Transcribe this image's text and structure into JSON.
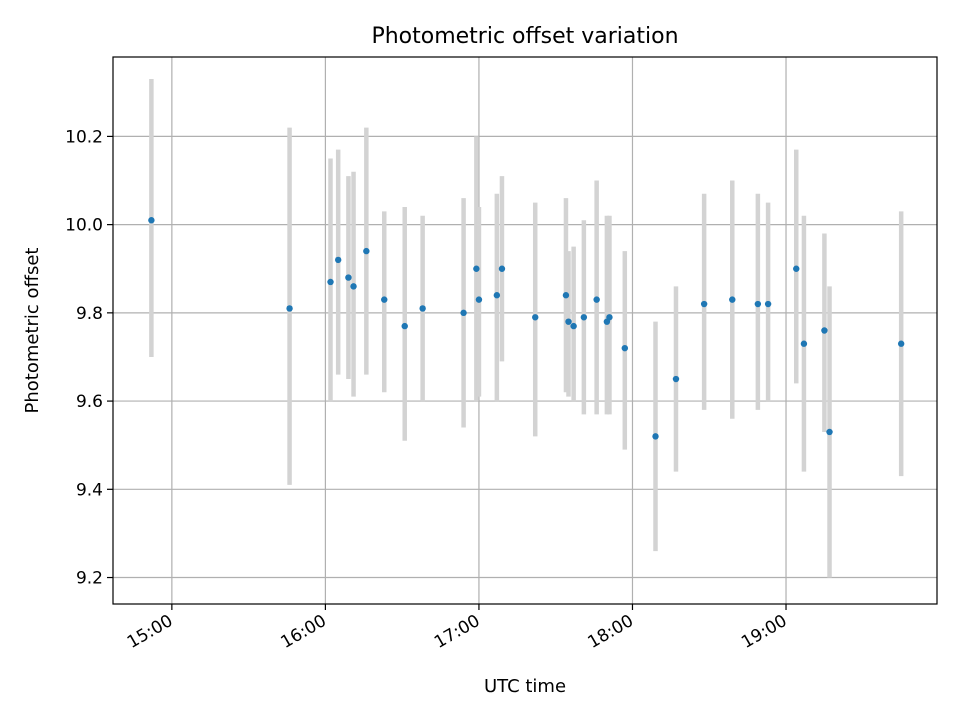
{
  "chart_data": {
    "type": "scatter",
    "title": "Photometric offset variation",
    "xlabel": "UTC time",
    "ylabel": "Photometric offset",
    "x_axis": {
      "ticks": [
        "15:00",
        "16:00",
        "17:00",
        "18:00",
        "19:00"
      ],
      "range": [
        "14:37",
        "19:59"
      ]
    },
    "y_axis": {
      "ticks": [
        "9.2",
        "9.4",
        "9.6",
        "9.8",
        "10.0",
        "10.2"
      ],
      "range": [
        9.14,
        10.38
      ]
    },
    "grid": true,
    "colors": {
      "point": "#1f77b4",
      "errorbar": "#d3d3d3",
      "grid": "#b0b0b0",
      "axis": "#000000"
    },
    "series": [
      {
        "points": [
          {
            "x": "14:52",
            "y": 10.01,
            "ylow": 9.7,
            "yhigh": 10.33
          },
          {
            "x": "15:46",
            "y": 9.81,
            "ylow": 9.41,
            "yhigh": 10.22
          },
          {
            "x": "16:02",
            "y": 9.87,
            "ylow": 9.6,
            "yhigh": 10.15
          },
          {
            "x": "16:05",
            "y": 9.92,
            "ylow": 9.66,
            "yhigh": 10.17
          },
          {
            "x": "16:09",
            "y": 9.88,
            "ylow": 9.65,
            "yhigh": 10.11
          },
          {
            "x": "16:11",
            "y": 9.86,
            "ylow": 9.61,
            "yhigh": 10.12
          },
          {
            "x": "16:16",
            "y": 9.94,
            "ylow": 9.66,
            "yhigh": 10.22
          },
          {
            "x": "16:23",
            "y": 9.83,
            "ylow": 9.62,
            "yhigh": 10.03
          },
          {
            "x": "16:31",
            "y": 9.77,
            "ylow": 9.51,
            "yhigh": 10.04
          },
          {
            "x": "16:38",
            "y": 9.81,
            "ylow": 9.6,
            "yhigh": 10.02
          },
          {
            "x": "16:54",
            "y": 9.8,
            "ylow": 9.54,
            "yhigh": 10.06
          },
          {
            "x": "16:59",
            "y": 9.9,
            "ylow": 9.6,
            "yhigh": 10.2
          },
          {
            "x": "17:00",
            "y": 9.83,
            "ylow": 9.61,
            "yhigh": 10.04
          },
          {
            "x": "17:07",
            "y": 9.84,
            "ylow": 9.6,
            "yhigh": 10.07
          },
          {
            "x": "17:09",
            "y": 9.9,
            "ylow": 9.69,
            "yhigh": 10.11
          },
          {
            "x": "17:22",
            "y": 9.79,
            "ylow": 9.52,
            "yhigh": 10.05
          },
          {
            "x": "17:34",
            "y": 9.84,
            "ylow": 9.62,
            "yhigh": 10.06
          },
          {
            "x": "17:35",
            "y": 9.78,
            "ylow": 9.61,
            "yhigh": 9.94
          },
          {
            "x": "17:37",
            "y": 9.77,
            "ylow": 9.6,
            "yhigh": 9.95
          },
          {
            "x": "17:41",
            "y": 9.79,
            "ylow": 9.57,
            "yhigh": 10.01
          },
          {
            "x": "17:46",
            "y": 9.83,
            "ylow": 9.57,
            "yhigh": 10.1
          },
          {
            "x": "17:50",
            "y": 9.78,
            "ylow": 9.57,
            "yhigh": 10.02
          },
          {
            "x": "17:51",
            "y": 9.79,
            "ylow": 9.57,
            "yhigh": 10.02
          },
          {
            "x": "17:57",
            "y": 9.72,
            "ylow": 9.49,
            "yhigh": 9.94
          },
          {
            "x": "18:09",
            "y": 9.52,
            "ylow": 9.26,
            "yhigh": 9.78
          },
          {
            "x": "18:17",
            "y": 9.65,
            "ylow": 9.44,
            "yhigh": 9.86
          },
          {
            "x": "18:28",
            "y": 9.82,
            "ylow": 9.58,
            "yhigh": 10.07
          },
          {
            "x": "18:39",
            "y": 9.83,
            "ylow": 9.56,
            "yhigh": 10.1
          },
          {
            "x": "18:49",
            "y": 9.82,
            "ylow": 9.58,
            "yhigh": 10.07
          },
          {
            "x": "18:53",
            "y": 9.82,
            "ylow": 9.6,
            "yhigh": 10.05
          },
          {
            "x": "19:04",
            "y": 9.9,
            "ylow": 9.64,
            "yhigh": 10.17
          },
          {
            "x": "19:07",
            "y": 9.73,
            "ylow": 9.44,
            "yhigh": 10.02
          },
          {
            "x": "19:15",
            "y": 9.76,
            "ylow": 9.53,
            "yhigh": 9.98
          },
          {
            "x": "19:17",
            "y": 9.53,
            "ylow": 9.2,
            "yhigh": 9.86
          },
          {
            "x": "19:45",
            "y": 9.73,
            "ylow": 9.43,
            "yhigh": 10.03
          }
        ]
      }
    ]
  }
}
